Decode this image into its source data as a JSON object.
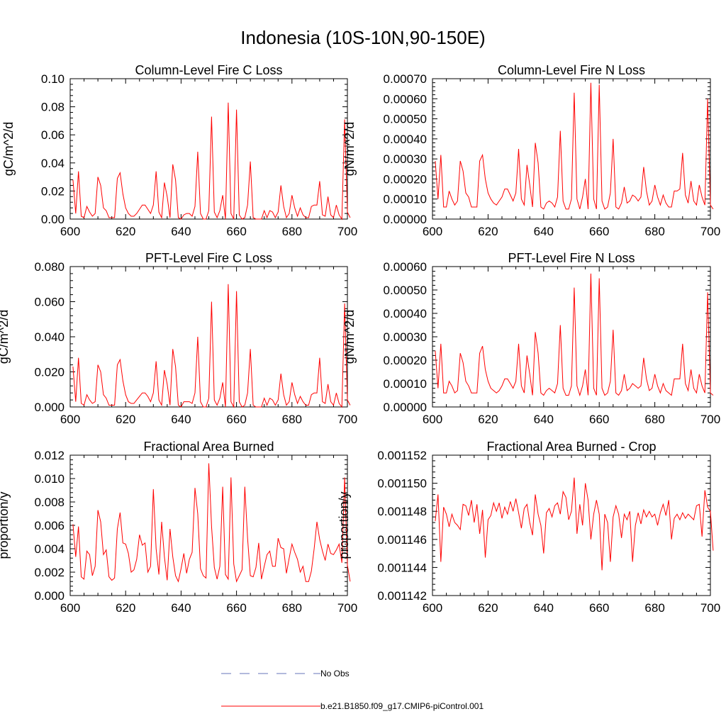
{
  "figure": {
    "title": "Indonesia (10S-10N,90-150E)"
  },
  "legend": {
    "items": [
      {
        "label": "No Obs",
        "color": "#6674b8",
        "style": "dashed"
      },
      {
        "label": "b.e21.B1850.f09_g17.CMIP6-piControl.001",
        "color": "#ff0000",
        "style": "solid"
      }
    ]
  },
  "chart_data": [
    {
      "type": "line",
      "title": "Column-Level Fire C Loss",
      "ylabel": "gC/m^2/d",
      "xlabel": "",
      "xlim": [
        600,
        700
      ],
      "ylim": [
        0.0,
        0.1
      ],
      "xticks": [
        600,
        620,
        640,
        660,
        680,
        700
      ],
      "yticks": [
        "0.00",
        "0.02",
        "0.04",
        "0.06",
        "0.08",
        "0.10"
      ],
      "series": [
        {
          "name": "b.e21.B1850.f09_g17.CMIP6-piControl.001",
          "color": "#ff0000",
          "x_start": 601,
          "values": [
            0.028,
            0.004,
            0.034,
            0.002,
            0.001,
            0.009,
            0.005,
            0.002,
            0.004,
            0.03,
            0.024,
            0.008,
            0.006,
            0.001,
            0.001,
            0.001,
            0.029,
            0.033,
            0.018,
            0.008,
            0.004,
            0.002,
            0.002,
            0.004,
            0.007,
            0.01,
            0.01,
            0.007,
            0.004,
            0.01,
            0.034,
            0.005,
            0.001,
            0.026,
            0.016,
            0.001,
            0.039,
            0.028,
            0.001,
            0.0,
            0.003,
            0.004,
            0.004,
            0.002,
            0.009,
            0.048,
            0.004,
            0.0,
            0.0,
            0.006,
            0.073,
            0.005,
            0.001,
            0.006,
            0.017,
            0.0,
            0.083,
            0.004,
            0.0,
            0.078,
            0.003,
            0.0,
            0.001,
            0.01,
            0.041,
            0.001,
            0.0,
            0.0,
            0.0,
            0.006,
            0.001,
            0.006,
            0.005,
            0.001,
            0.005,
            0.024,
            0.009,
            0.001,
            0.004,
            0.017,
            0.008,
            0.002,
            0.008,
            0.003,
            0.001,
            0.001,
            0.009,
            0.01,
            0.01,
            0.027,
            0.003,
            0.002,
            0.016,
            0.003,
            0.001,
            0.01,
            0.003,
            0.0,
            0.071,
            0.005,
            0.001
          ]
        }
      ]
    },
    {
      "type": "line",
      "title": "Column-Level Fire N Loss",
      "ylabel": "gN/m^2/d",
      "xlabel": "",
      "xlim": [
        600,
        700
      ],
      "ylim": [
        0.0,
        0.0007
      ],
      "xticks": [
        600,
        620,
        640,
        660,
        680,
        700
      ],
      "yticks": [
        "0.00000",
        "0.00010",
        "0.00020",
        "0.00030",
        "0.00040",
        "0.00050",
        "0.00060",
        "0.00070"
      ],
      "series": [
        {
          "name": "b.e21.B1850.f09_g17.CMIP6-piControl.001",
          "color": "#ff0000",
          "x_start": 601,
          "values": [
            0.00029,
            0.0001,
            0.00032,
            6e-05,
            6e-05,
            0.00014,
            0.0001,
            7e-05,
            9e-05,
            0.00029,
            0.00024,
            0.00013,
            0.00011,
            6e-05,
            6e-05,
            6e-05,
            0.00029,
            0.00032,
            0.0002,
            0.00013,
            0.0001,
            8e-05,
            7e-05,
            9e-05,
            0.00011,
            0.00015,
            0.00015,
            0.00012,
            9e-05,
            0.00013,
            0.00035,
            0.0001,
            7e-05,
            0.00027,
            0.00017,
            6e-05,
            0.00038,
            0.00028,
            6e-05,
            5e-05,
            8e-05,
            9e-05,
            8e-05,
            6e-05,
            0.00011,
            0.00044,
            9e-05,
            5e-05,
            5e-05,
            0.0001,
            0.00063,
            0.0001,
            5e-05,
            0.00011,
            0.0002,
            5e-05,
            0.00068,
            0.0001,
            5e-05,
            0.00067,
            9e-05,
            5e-05,
            6e-05,
            0.00013,
            0.0004,
            6e-05,
            5e-05,
            8e-05,
            0.00016,
            8e-05,
            9e-05,
            0.00012,
            0.00011,
            9e-05,
            0.00011,
            0.00026,
            0.00014,
            7e-05,
            9e-05,
            0.00017,
            0.00011,
            7e-05,
            0.00012,
            8e-05,
            6e-05,
            6e-05,
            0.00014,
            0.00014,
            0.00015,
            0.00033,
            0.00012,
            8e-05,
            0.00019,
            9e-05,
            7e-05,
            0.00017,
            0.00011,
            7e-05,
            0.0006,
            7e-05,
            5e-05
          ]
        }
      ]
    },
    {
      "type": "line",
      "title": "PFT-Level Fire C Loss",
      "ylabel": "gC/m^2/d",
      "xlabel": "",
      "xlim": [
        600,
        700
      ],
      "ylim": [
        0.0,
        0.08
      ],
      "xticks": [
        600,
        620,
        640,
        660,
        680,
        700
      ],
      "yticks": [
        "0.000",
        "0.020",
        "0.040",
        "0.060",
        "0.080"
      ],
      "series": [
        {
          "name": "b.e21.B1850.f09_g17.CMIP6-piControl.001",
          "color": "#ff0000",
          "x_start": 601,
          "values": [
            0.023,
            0.003,
            0.028,
            0.002,
            0.001,
            0.007,
            0.004,
            0.002,
            0.003,
            0.024,
            0.02,
            0.007,
            0.005,
            0.001,
            0.001,
            0.001,
            0.024,
            0.027,
            0.015,
            0.007,
            0.003,
            0.002,
            0.002,
            0.004,
            0.006,
            0.008,
            0.008,
            0.006,
            0.003,
            0.008,
            0.026,
            0.004,
            0.001,
            0.021,
            0.013,
            0.001,
            0.033,
            0.023,
            0.001,
            0.0,
            0.003,
            0.003,
            0.003,
            0.002,
            0.008,
            0.04,
            0.003,
            0.0,
            0.0,
            0.005,
            0.06,
            0.004,
            0.001,
            0.005,
            0.014,
            0.0,
            0.07,
            0.003,
            0.0,
            0.066,
            0.003,
            0.0,
            0.001,
            0.008,
            0.033,
            0.001,
            0.0,
            0.0,
            0.0,
            0.005,
            0.001,
            0.005,
            0.004,
            0.001,
            0.004,
            0.019,
            0.007,
            0.001,
            0.003,
            0.014,
            0.007,
            0.002,
            0.006,
            0.003,
            0.001,
            0.001,
            0.007,
            0.008,
            0.008,
            0.028,
            0.003,
            0.002,
            0.013,
            0.003,
            0.001,
            0.008,
            0.002,
            0.0,
            0.059,
            0.004,
            0.001
          ]
        }
      ]
    },
    {
      "type": "line",
      "title": "PFT-Level Fire N Loss",
      "ylabel": "gN/m^2/d",
      "xlabel": "",
      "xlim": [
        600,
        700
      ],
      "ylim": [
        0.0,
        0.0006
      ],
      "xticks": [
        600,
        620,
        640,
        660,
        680,
        700
      ],
      "yticks": [
        "0.00000",
        "0.00010",
        "0.00020",
        "0.00030",
        "0.00040",
        "0.00050",
        "0.00060"
      ],
      "series": [
        {
          "name": "b.e21.B1850.f09_g17.CMIP6-piControl.001",
          "color": "#ff0000",
          "x_start": 601,
          "values": [
            0.00024,
            8e-05,
            0.00027,
            6e-05,
            6e-05,
            0.00011,
            9e-05,
            6e-05,
            7e-05,
            0.00023,
            0.00019,
            0.00011,
            9e-05,
            6e-05,
            6e-05,
            6e-05,
            0.00023,
            0.00026,
            0.00016,
            0.00011,
            8e-05,
            7e-05,
            6e-05,
            7e-05,
            9e-05,
            0.00012,
            0.00012,
            0.0001,
            8e-05,
            0.00011,
            0.00027,
            9e-05,
            6e-05,
            0.00022,
            0.00014,
            5e-05,
            0.00032,
            0.00023,
            6e-05,
            5e-05,
            7e-05,
            8e-05,
            7e-05,
            6e-05,
            0.0001,
            0.00035,
            8e-05,
            5e-05,
            5e-05,
            9e-05,
            0.00051,
            9e-05,
            5e-05,
            9e-05,
            0.00016,
            5e-05,
            0.00057,
            8e-05,
            5e-05,
            0.00055,
            8e-05,
            5e-05,
            6e-05,
            0.00011,
            0.00033,
            6e-05,
            5e-05,
            7e-05,
            0.00014,
            7e-05,
            8e-05,
            0.0001,
            9e-05,
            8e-05,
            9e-05,
            0.00021,
            0.00012,
            7e-05,
            8e-05,
            0.00014,
            9e-05,
            6e-05,
            0.0001,
            7e-05,
            6e-05,
            5e-05,
            0.00012,
            0.00012,
            0.00012,
            0.00027,
            0.0001,
            7e-05,
            0.00016,
            8e-05,
            6e-05,
            0.00014,
            9e-05,
            6e-05,
            0.00049,
            6e-05,
            5e-05
          ]
        }
      ]
    },
    {
      "type": "line",
      "title": "Fractional Area Burned",
      "ylabel": "proportion/y",
      "xlabel": "",
      "xlim": [
        600,
        700
      ],
      "ylim": [
        0.0,
        0.012
      ],
      "xticks": [
        600,
        620,
        640,
        660,
        680,
        700
      ],
      "yticks": [
        "0.000",
        "0.002",
        "0.004",
        "0.006",
        "0.008",
        "0.010",
        "0.012"
      ],
      "series": [
        {
          "name": "b.e21.B1850.f09_g17.CMIP6-piControl.001",
          "color": "#ff0000",
          "x_start": 601,
          "values": [
            0.0061,
            0.0033,
            0.0059,
            0.0016,
            0.0014,
            0.0038,
            0.0035,
            0.0017,
            0.0025,
            0.0073,
            0.0063,
            0.0035,
            0.0039,
            0.0016,
            0.0013,
            0.0015,
            0.0057,
            0.0071,
            0.0045,
            0.0044,
            0.0036,
            0.002,
            0.0022,
            0.0031,
            0.0052,
            0.0043,
            0.0045,
            0.002,
            0.0025,
            0.0091,
            0.004,
            0.0018,
            0.0063,
            0.0033,
            0.0013,
            0.0057,
            0.0033,
            0.0017,
            0.0012,
            0.0023,
            0.0036,
            0.0019,
            0.0031,
            0.0037,
            0.0092,
            0.007,
            0.0023,
            0.0017,
            0.0015,
            0.0113,
            0.0059,
            0.0024,
            0.0014,
            0.0025,
            0.0093,
            0.0018,
            0.0014,
            0.0101,
            0.0027,
            0.0012,
            0.0017,
            0.0022,
            0.0093,
            0.0049,
            0.0017,
            0.0016,
            0.0024,
            0.0045,
            0.0014,
            0.0025,
            0.0035,
            0.0038,
            0.0025,
            0.0025,
            0.0049,
            0.0041,
            0.004,
            0.0019,
            0.0032,
            0.0044,
            0.0037,
            0.0031,
            0.002,
            0.0025,
            0.0012,
            0.0012,
            0.0021,
            0.004,
            0.0063,
            0.0048,
            0.0038,
            0.003,
            0.0044,
            0.0036,
            0.0035,
            0.0039,
            0.0044,
            0.0028,
            0.0101,
            0.0026,
            0.0012
          ]
        }
      ]
    },
    {
      "type": "line",
      "title": "Fractional Area Burned - Crop",
      "ylabel": "proportion/y",
      "xlabel": "",
      "xlim": [
        600,
        700
      ],
      "ylim": [
        0.001142,
        0.001152
      ],
      "xticks": [
        600,
        620,
        640,
        660,
        680,
        700
      ],
      "yticks": [
        "0.001142",
        "0.001144",
        "0.001146",
        "0.001148",
        "0.001150",
        "0.001152"
      ],
      "series": [
        {
          "name": "b.e21.B1850.f09_g17.CMIP6-piControl.001",
          "color": "#ff0000",
          "x_start": 601,
          "values": [
            0.0011473,
            0.0011492,
            0.0011444,
            0.0011483,
            0.0011478,
            0.0011469,
            0.0011478,
            0.0011472,
            0.001147,
            0.0011467,
            0.0011485,
            0.0011484,
            0.0011477,
            0.0011488,
            0.0011472,
            0.0011485,
            0.0011464,
            0.0011481,
            0.0011447,
            0.0011474,
            0.0011477,
            0.0011486,
            0.001148,
            0.0011486,
            0.0011475,
            0.0011483,
            0.0011478,
            0.0011487,
            0.001148,
            0.0011489,
            0.0011479,
            0.0011468,
            0.0011482,
            0.0011485,
            0.0011472,
            0.0011463,
            0.0011492,
            0.0011478,
            0.001147,
            0.001145,
            0.0011479,
            0.0011482,
            0.0011476,
            0.0011484,
            0.0011486,
            0.0011478,
            0.0011494,
            0.001149,
            0.0011474,
            0.001148,
            0.0011504,
            0.0011464,
            0.0011485,
            0.001147,
            0.00115,
            0.0011488,
            0.001146,
            0.0011478,
            0.0011488,
            0.0011478,
            0.0011438,
            0.0011478,
            0.0011472,
            0.0011444,
            0.0011476,
            0.0011484,
            0.0011478,
            0.0011461,
            0.0011478,
            0.0011474,
            0.001148,
            0.0011444,
            0.001147,
            0.0011479,
            0.0011471,
            0.0011481,
            0.0011476,
            0.001148,
            0.0011476,
            0.0011478,
            0.001147,
            0.0011479,
            0.0011485,
            0.0011477,
            0.0011488,
            0.001146,
            0.0011475,
            0.0011478,
            0.0011474,
            0.0011479,
            0.0011475,
            0.0011478,
            0.0011476,
            0.0011474,
            0.0011484,
            0.0011485,
            0.0011462,
            0.0011495,
            0.0011483,
            0.001148,
            0.0011452
          ]
        }
      ]
    }
  ]
}
